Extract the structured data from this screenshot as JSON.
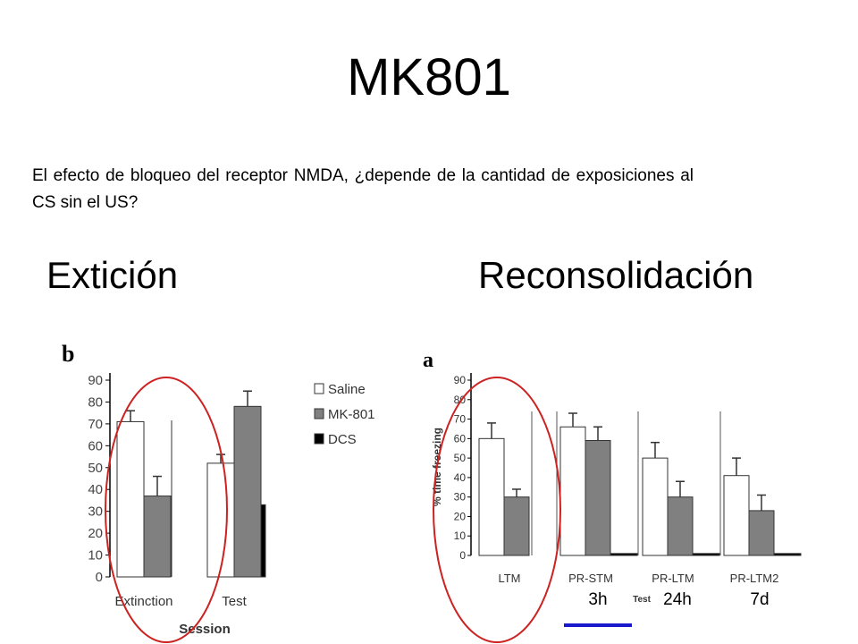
{
  "slide": {
    "title": "MK801",
    "question": "El efecto de bloqueo del receptor NMDA, ¿depende de la cantidad de exposiciones al CS sin el US?",
    "heading_left": "Extición",
    "heading_right": "Reconsolidación",
    "time_labels": [
      "3h",
      "24h",
      "7d"
    ]
  },
  "colors": {
    "saline": "#ffffff",
    "mk801": "#808080",
    "dcs": "#000000",
    "highlight_ellipse": "#cc2222",
    "underline": "#1a1acc"
  },
  "chart_data": [
    {
      "type": "bar",
      "panel_label": "b",
      "categories": [
        "Extinction",
        "Test"
      ],
      "series": [
        {
          "name": "Saline",
          "values": [
            71,
            52
          ],
          "errors": [
            5,
            4
          ]
        },
        {
          "name": "MK-801",
          "values": [
            37,
            78
          ],
          "errors": [
            9,
            7
          ]
        },
        {
          "name": "DCS",
          "values": [
            null,
            33
          ],
          "errors": [
            null,
            null
          ]
        }
      ],
      "legend": [
        "Saline",
        "MK-801",
        "DCS"
      ],
      "legend_placement": "right",
      "xlabel": "Session",
      "ylabel": "",
      "ylim": [
        0,
        90
      ],
      "yticks": [
        0,
        10,
        20,
        30,
        40,
        50,
        60,
        70,
        80,
        90
      ],
      "grid": false
    },
    {
      "type": "bar",
      "panel_label": "a",
      "categories": [
        "LTM",
        "PR-STM",
        "PR-LTM",
        "PR-LTM2"
      ],
      "series": [
        {
          "name": "Saline",
          "values": [
            60,
            66,
            50,
            41
          ],
          "errors": [
            8,
            7,
            8,
            9
          ]
        },
        {
          "name": "MK-801",
          "values": [
            30,
            59,
            30,
            23
          ],
          "errors": [
            4,
            7,
            8,
            8
          ]
        },
        {
          "name": "DCS",
          "values": [
            null,
            1,
            1,
            1
          ],
          "errors": [
            null,
            null,
            null,
            null
          ]
        }
      ],
      "xlabel": "Test",
      "ylabel": "% time freezing",
      "ylim": [
        0,
        90
      ],
      "yticks": [
        0,
        10,
        20,
        30,
        40,
        50,
        60,
        70,
        80,
        90
      ],
      "grid": false
    }
  ]
}
